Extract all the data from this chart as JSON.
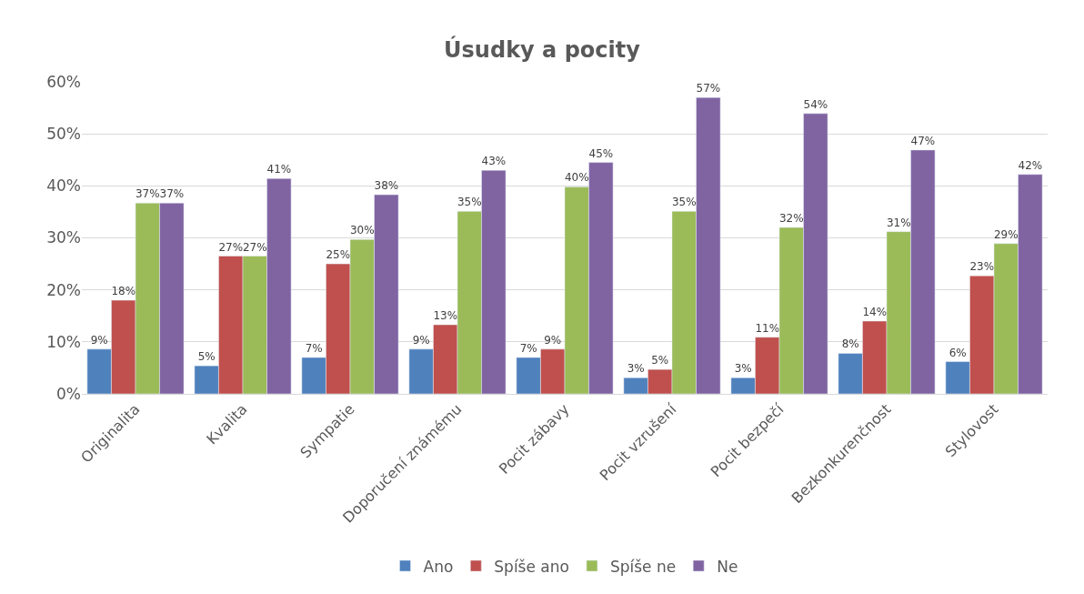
{
  "chart_data": {
    "type": "bar",
    "title": "Úsudky a pocity",
    "categories": [
      "Originalita",
      "Kvalita",
      "Sympatie",
      "Doporučení známému",
      "Pocit zábavy",
      "Pocit vzrušení",
      "Pocit bezpečí",
      "Bezkonkurenčnost",
      "Stylovost"
    ],
    "series": [
      {
        "name": "Ano",
        "color": "#4f81bd",
        "values": [
          8.6,
          5.4,
          7.0,
          8.6,
          7.0,
          3.1,
          3.1,
          7.8,
          6.2
        ],
        "value_labels": [
          "9%",
          "5%",
          "7%",
          "9%",
          "7%",
          "3%",
          "3%",
          "8%",
          "6%"
        ]
      },
      {
        "name": "Spíše ano",
        "color": "#c0504d",
        "values": [
          18.0,
          26.5,
          25.0,
          13.3,
          8.6,
          4.7,
          10.9,
          14.0,
          22.7
        ],
        "value_labels": [
          "18%",
          "27%",
          "25%",
          "13%",
          "9%",
          "5%",
          "11%",
          "14%",
          "23%"
        ]
      },
      {
        "name": "Spíše ne",
        "color": "#9bbb59",
        "values": [
          36.7,
          26.5,
          29.7,
          35.1,
          39.8,
          35.1,
          32.0,
          31.2,
          28.9
        ],
        "value_labels": [
          "37%",
          "27%",
          "30%",
          "35%",
          "40%",
          "35%",
          "32%",
          "31%",
          "29%"
        ]
      },
      {
        "name": "Ne",
        "color": "#8064a2",
        "values": [
          36.7,
          41.4,
          38.3,
          43.0,
          44.5,
          57.0,
          53.9,
          46.9,
          42.2
        ],
        "value_labels": [
          "37%",
          "41%",
          "38%",
          "43%",
          "45%",
          "57%",
          "54%",
          "47%",
          "42%"
        ]
      }
    ],
    "ylim": [
      0,
      60
    ],
    "yticks": [
      {
        "value": 0,
        "label": "0%"
      },
      {
        "value": 10,
        "label": "10%"
      },
      {
        "value": 20,
        "label": "20%"
      },
      {
        "value": 30,
        "label": "30%"
      },
      {
        "value": 40,
        "label": "40%"
      },
      {
        "value": 50,
        "label": "50%"
      },
      {
        "value": 60,
        "label": "60%"
      }
    ],
    "grid": "y",
    "legend": "bottom"
  }
}
